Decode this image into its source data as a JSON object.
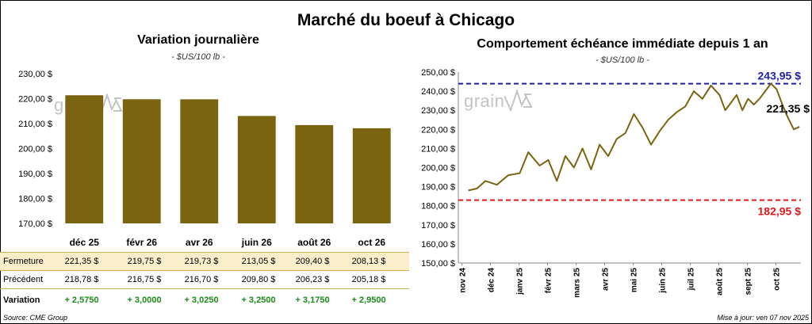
{
  "title": "Marché du boeuf à Chicago",
  "left": {
    "title": "Variation journalière",
    "unit": "- $US/100 lb -",
    "table_labels": {
      "close": "Fermeture",
      "prev": "Précédent",
      "var": "Variation"
    },
    "closes": [
      "221,35  $",
      "219,75  $",
      "219,73  $",
      "213,05  $",
      "209,40  $",
      "208,13  $"
    ],
    "prevs": [
      "218,78  $",
      "216,75  $",
      "216,70  $",
      "209,80  $",
      "206,23  $",
      "205,18  $"
    ],
    "vars": [
      "+ 2,5750",
      "+ 3,0000",
      "+ 3,0250",
      "+ 3,2500",
      "+ 3,1750",
      "+ 2,9500"
    ]
  },
  "right": {
    "title": "Comportement  échéance immédiate depuis 1 an",
    "unit": "- $US/100 lb -",
    "high_label": "243,95 $",
    "low_label": "182,95 $",
    "last_label": "221,35 $"
  },
  "watermark": "grain",
  "source": "Source: CME Group",
  "updated": "Mise à jour: ven 07 nov 2025",
  "colors": {
    "bar": "#7a6410",
    "line": "#7a6410",
    "high": "#1f1fa8",
    "low": "#e01a1a",
    "highlight": "#fbeecb"
  },
  "chart_data": [
    {
      "type": "bar",
      "title": "Variation journalière",
      "categories": [
        "déc 25",
        "févr 26",
        "avr 26",
        "juin 26",
        "août 26",
        "oct 26"
      ],
      "values": [
        221.35,
        219.75,
        219.73,
        213.05,
        209.4,
        208.13
      ],
      "ylim": [
        170,
        230
      ],
      "yticks": [
        "170,00 $",
        "180,00 $",
        "190,00 $",
        "200,00 $",
        "210,00 $",
        "220,00 $",
        "230,00 $"
      ],
      "grid": false
    },
    {
      "type": "line",
      "title": "Comportement  échéance immédiate depuis 1 an",
      "xticks": [
        "nov 24",
        "déc 24",
        "janv 25",
        "févr 25",
        "mars 25",
        "avr 25",
        "mai 25",
        "juin 25",
        "juil 25",
        "août 25",
        "sept 25",
        "oct 25"
      ],
      "ylim": [
        150,
        250
      ],
      "yticks": [
        "150,00 $",
        "160,00 $",
        "170,00 $",
        "180,00 $",
        "190,00 $",
        "200,00 $",
        "210,00 $",
        "220,00 $",
        "230,00 $",
        "240,00 $",
        "250,00 $"
      ],
      "series": [
        {
          "x": [
            0,
            0.3,
            0.6,
            1.0,
            1.4,
            1.8,
            2.1,
            2.5,
            2.8,
            3.1,
            3.4,
            3.7,
            4.0,
            4.3,
            4.6,
            4.9,
            5.2,
            5.5,
            5.8,
            6.1,
            6.4,
            6.7,
            7.0,
            7.3,
            7.6,
            7.9,
            8.2,
            8.5,
            8.8,
            9.0,
            9.2,
            9.4,
            9.6,
            9.8,
            10.0,
            10.2,
            10.4,
            10.6,
            10.8,
            11.0,
            11.2,
            11.4,
            11.6
          ],
          "values": [
            188,
            189,
            193,
            191,
            196,
            197,
            208,
            201,
            204,
            193,
            206,
            200,
            210,
            199,
            212,
            206,
            215,
            218,
            228,
            221,
            212,
            219,
            225,
            229,
            232,
            240,
            236,
            243,
            238,
            230,
            234,
            238,
            230,
            236,
            233,
            236,
            240,
            244,
            241,
            233,
            226,
            220,
            221.35
          ]
        }
      ],
      "hlines": [
        {
          "value": 243.95,
          "label": "243,95 $"
        },
        {
          "value": 182.95,
          "label": "182,95 $"
        }
      ]
    }
  ]
}
